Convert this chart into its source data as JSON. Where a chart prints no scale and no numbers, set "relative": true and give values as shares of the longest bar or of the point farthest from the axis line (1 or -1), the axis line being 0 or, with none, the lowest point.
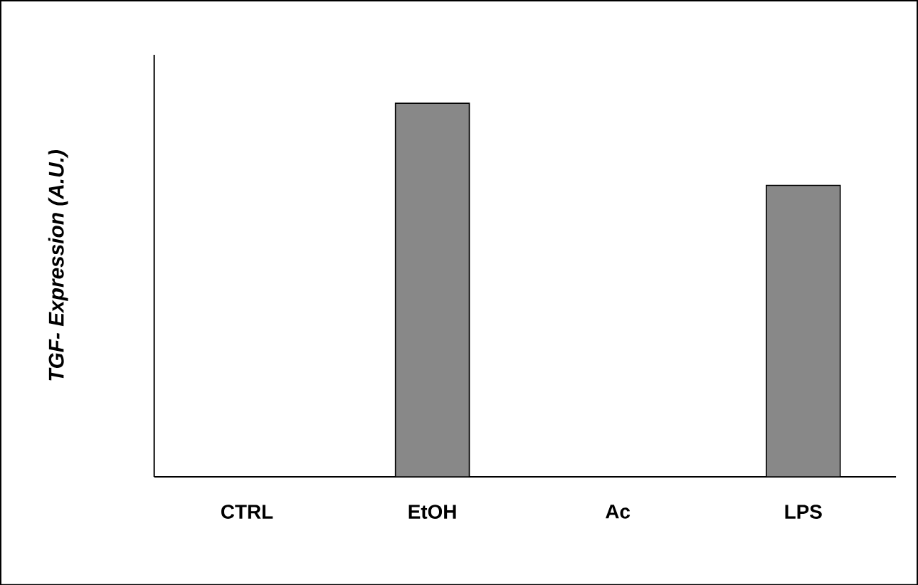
{
  "chart_data": {
    "type": "bar",
    "ylabel": "TGF- Expression (A.U.)",
    "categories": [
      "CTRL",
      "EtOH",
      "Ac",
      "LPS"
    ],
    "values": [
      null,
      1,
      null,
      0.78
    ],
    "color": "#888888",
    "relative": true
  }
}
